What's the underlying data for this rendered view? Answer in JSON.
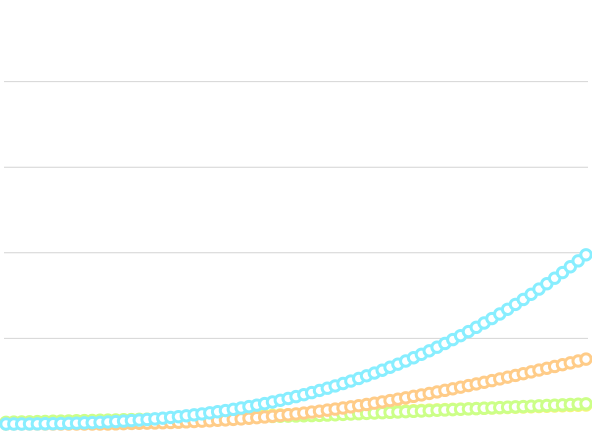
{
  "chart_data": {
    "type": "scatter",
    "grid": true,
    "legend": "none",
    "x": [
      0,
      1,
      2,
      3,
      4,
      5,
      6,
      7,
      8,
      9,
      10,
      11,
      12,
      13,
      14,
      15,
      16,
      17,
      18,
      19,
      20,
      21,
      22,
      23,
      24,
      25,
      26,
      27,
      28,
      29,
      30,
      31,
      32,
      33,
      34,
      35,
      36,
      37,
      38,
      39,
      40,
      41,
      42,
      43,
      44,
      45,
      46,
      47,
      48,
      49,
      50,
      51,
      52,
      53,
      54,
      55,
      56,
      57,
      58,
      59,
      60,
      61,
      62,
      63,
      64,
      65,
      66,
      67,
      68,
      69,
      70,
      71,
      72,
      73,
      74
    ],
    "xlim": [
      0,
      74
    ],
    "ylim": [
      0,
      5
    ],
    "series": [
      {
        "color": "#f5f57a",
        "values": [
          0.0,
          0.003,
          0.006,
          0.009,
          0.012,
          0.015,
          0.018,
          0.021,
          0.024,
          0.027,
          0.03,
          0.033,
          0.036,
          0.039,
          0.042,
          0.045,
          0.048,
          0.051,
          0.054,
          0.057,
          0.06,
          0.063,
          0.066,
          0.069,
          0.072,
          0.075,
          0.078,
          0.081,
          0.084,
          0.087,
          0.09,
          0.093,
          0.096,
          0.099,
          0.102,
          0.105,
          0.108,
          0.111,
          0.114,
          0.117,
          0.12,
          0.123,
          0.126,
          0.129,
          0.132,
          0.135,
          0.138,
          0.141,
          0.144,
          0.147,
          0.15,
          0.153,
          0.156,
          0.159,
          0.162,
          0.165,
          0.168,
          0.171,
          0.174,
          0.177,
          0.18,
          0.183,
          0.186,
          0.189,
          0.192,
          0.195,
          0.198,
          0.201,
          0.204,
          0.207,
          0.21,
          0.213,
          0.216,
          0.219,
          0.222
        ]
      },
      {
        "color": "#ccff88",
        "values": [
          0.02,
          0.022,
          0.024,
          0.026,
          0.028,
          0.03,
          0.032,
          0.034,
          0.036,
          0.038,
          0.04,
          0.042,
          0.044,
          0.046,
          0.048,
          0.05,
          0.052,
          0.054,
          0.056,
          0.058,
          0.06,
          0.062,
          0.064,
          0.066,
          0.068,
          0.07,
          0.072,
          0.074,
          0.076,
          0.078,
          0.08,
          0.082,
          0.084,
          0.086,
          0.088,
          0.09,
          0.092,
          0.094,
          0.096,
          0.098,
          0.1,
          0.104,
          0.108,
          0.112,
          0.116,
          0.12,
          0.124,
          0.128,
          0.132,
          0.136,
          0.14,
          0.144,
          0.148,
          0.152,
          0.156,
          0.16,
          0.164,
          0.168,
          0.172,
          0.176,
          0.18,
          0.184,
          0.188,
          0.192,
          0.196,
          0.2,
          0.204,
          0.208,
          0.212,
          0.216,
          0.22,
          0.224,
          0.228,
          0.232,
          0.236
        ]
      },
      {
        "color": "#ffcc88",
        "values": [
          0.0,
          0.0,
          0.0,
          0.0,
          0.0,
          0.0,
          0.0,
          0.0,
          0.0,
          0.0,
          0.0,
          0.0,
          0.0,
          0.0,
          0.002,
          0.004,
          0.006,
          0.008,
          0.01,
          0.012,
          0.015,
          0.018,
          0.021,
          0.025,
          0.029,
          0.033,
          0.038,
          0.043,
          0.048,
          0.054,
          0.06,
          0.067,
          0.074,
          0.082,
          0.09,
          0.099,
          0.108,
          0.118,
          0.128,
          0.139,
          0.15,
          0.162,
          0.174,
          0.187,
          0.2,
          0.214,
          0.228,
          0.243,
          0.258,
          0.274,
          0.29,
          0.306,
          0.323,
          0.34,
          0.357,
          0.375,
          0.393,
          0.411,
          0.43,
          0.449,
          0.468,
          0.487,
          0.507,
          0.527,
          0.547,
          0.567,
          0.588,
          0.609,
          0.63,
          0.651,
          0.672,
          0.693,
          0.714,
          0.736,
          0.758
        ]
      },
      {
        "color": "#88eeff",
        "values": [
          0.0,
          0.0,
          0.0,
          0.001,
          0.002,
          0.003,
          0.004,
          0.006,
          0.008,
          0.01,
          0.013,
          0.016,
          0.02,
          0.024,
          0.029,
          0.034,
          0.04,
          0.046,
          0.053,
          0.06,
          0.068,
          0.077,
          0.086,
          0.096,
          0.107,
          0.118,
          0.13,
          0.143,
          0.157,
          0.171,
          0.187,
          0.203,
          0.22,
          0.238,
          0.257,
          0.277,
          0.298,
          0.32,
          0.343,
          0.367,
          0.392,
          0.418,
          0.445,
          0.473,
          0.502,
          0.532,
          0.563,
          0.595,
          0.628,
          0.663,
          0.699,
          0.736,
          0.774,
          0.814,
          0.855,
          0.897,
          0.941,
          0.986,
          1.032,
          1.08,
          1.129,
          1.18,
          1.232,
          1.285,
          1.34,
          1.397,
          1.455,
          1.515,
          1.576,
          1.639,
          1.703,
          1.769,
          1.837,
          1.906,
          1.977
        ]
      }
    ]
  }
}
